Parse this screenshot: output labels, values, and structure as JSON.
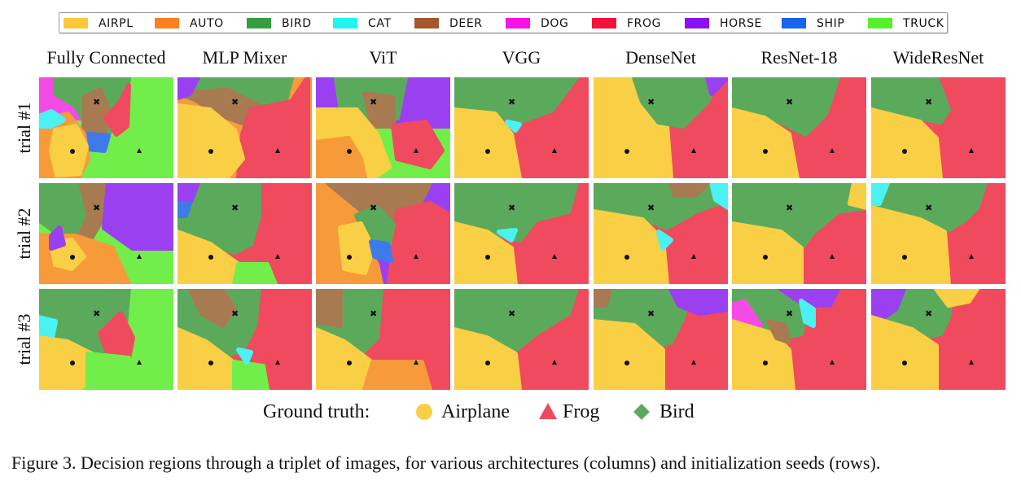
{
  "legend": [
    {
      "label": "AIRPL",
      "color": "#FCC93C"
    },
    {
      "label": "AUTO",
      "color": "#FA8121"
    },
    {
      "label": "BIRD",
      "color": "#359F40"
    },
    {
      "label": "CAT",
      "color": "#1FF5F5"
    },
    {
      "label": "DEER",
      "color": "#A5562D"
    },
    {
      "label": "DOG",
      "color": "#F612E8"
    },
    {
      "label": "FROG",
      "color": "#F3123A"
    },
    {
      "label": "HORSE",
      "color": "#8A12F2"
    },
    {
      "label": "SHIP",
      "color": "#1A63EC"
    },
    {
      "label": "TRUCK",
      "color": "#57F02D"
    }
  ],
  "columns": [
    "Fully Connected",
    "MLP Mixer",
    "ViT",
    "VGG",
    "DenseNet",
    "ResNet-18",
    "WideResNet"
  ],
  "rows": [
    "trial #1",
    "trial #2",
    "trial #3"
  ],
  "ground_truth": {
    "label": "Ground truth:",
    "items": [
      {
        "label": "Airplane",
        "marker": "circle",
        "color": "#FCC93C"
      },
      {
        "label": "Frog",
        "marker": "triangle",
        "color": "#F3123A"
      },
      {
        "label": "Bird",
        "marker": "cross",
        "color": "#359F40"
      }
    ]
  },
  "caption": "Figure 3. Decision regions through a triplet of images, for various architectures (columns) and initialization seeds (rows)."
}
